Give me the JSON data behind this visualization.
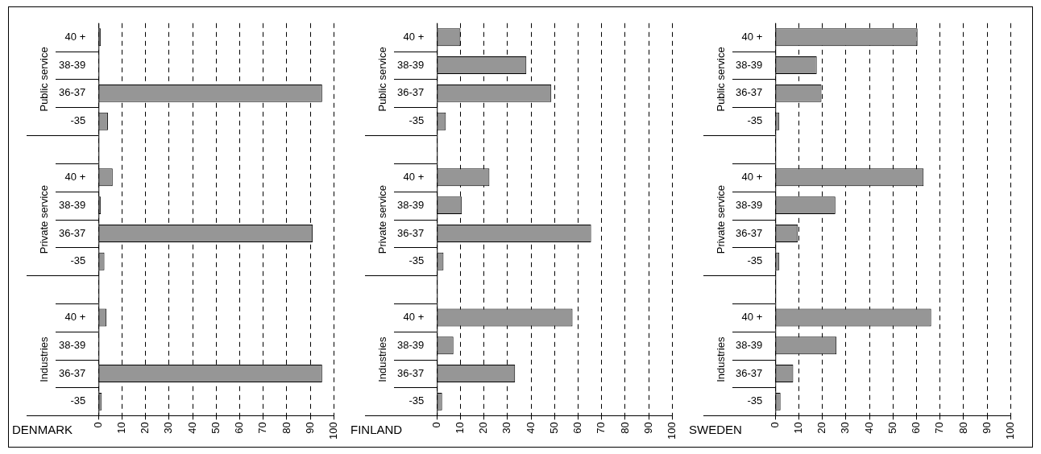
{
  "chart_data": [
    {
      "type": "bar",
      "orientation": "horizontal",
      "title": "DENMARK",
      "categories": [
        "40 +",
        "38-39",
        "36-37",
        "-35",
        null,
        "40 +",
        "38-39",
        "36-37",
        "-35",
        null,
        "40 +",
        "38-39",
        "36-37",
        "-35"
      ],
      "values": [
        1,
        0,
        95,
        4,
        null,
        6,
        1,
        91,
        2.5,
        null,
        3.4,
        0,
        95,
        1.4
      ],
      "color": "#969696",
      "xlim": [
        0,
        100
      ],
      "xticks": [
        0,
        10,
        20,
        30,
        40,
        50,
        60,
        70,
        80,
        90,
        100
      ],
      "grid": "x",
      "annotations": [
        "Public service",
        "Private service",
        "Industries"
      ]
    },
    {
      "type": "bar",
      "orientation": "horizontal",
      "title": "FINLAND",
      "categories": [
        "40 +",
        "38-39",
        "36-37",
        "-35",
        null,
        "40 +",
        "38-39",
        "36-37",
        "-35",
        null,
        "40 +",
        "38-39",
        "36-37",
        "-35"
      ],
      "values": [
        10,
        38,
        48.6,
        3.8,
        null,
        22.3,
        10.6,
        65.5,
        2.8,
        null,
        57.6,
        7,
        33.2,
        2.2
      ],
      "color": "#969696",
      "xlim": [
        0,
        100
      ],
      "xticks": [
        0,
        10,
        20,
        30,
        40,
        50,
        60,
        70,
        80,
        90,
        100
      ],
      "grid": "x",
      "annotations": [
        "Public service",
        "Private service",
        "Industries"
      ]
    },
    {
      "type": "bar",
      "orientation": "horizontal",
      "title": "SWEDEN",
      "categories": [
        "40 +",
        "38-39",
        "36-37",
        "-35",
        null,
        "40 +",
        "38-39",
        "36-37",
        "-35",
        null,
        "40 +",
        "38-39",
        "36-37",
        "-35"
      ],
      "values": [
        60.4,
        17.6,
        19.6,
        1.7,
        null,
        63,
        25.5,
        9.6,
        1.7,
        null,
        66.2,
        26,
        7.6,
        2.2
      ],
      "color": "#969696",
      "xlim": [
        0,
        100
      ],
      "xticks": [
        0,
        10,
        20,
        30,
        40,
        50,
        60,
        70,
        80,
        90,
        100
      ],
      "grid": "x",
      "annotations": [
        "Public service",
        "Private service",
        "Industries"
      ]
    }
  ]
}
